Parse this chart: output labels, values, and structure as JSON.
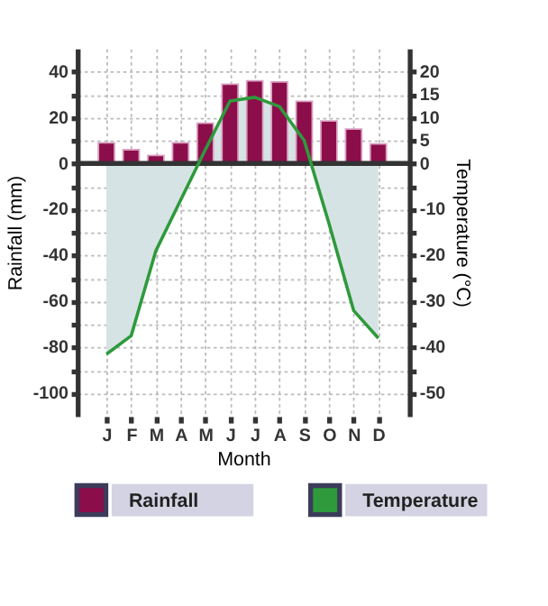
{
  "chart_data": {
    "type": "bar",
    "xlabel": "Month",
    "ylabel": "Rainfall (mm)",
    "y2label": "Temperature (°C)",
    "categories": [
      "J",
      "F",
      "M",
      "A",
      "M",
      "J",
      "J",
      "A",
      "S",
      "O",
      "N",
      "D"
    ],
    "ylim": [
      -110,
      50
    ],
    "yticks": [
      40,
      {
        "value": 30,
        "label": null
      },
      20,
      {
        "value": 10,
        "label": null
      },
      0,
      {
        "value": -10,
        "label": null
      },
      -20,
      {
        "value": -30,
        "label": null
      },
      -40,
      {
        "value": -50,
        "label": null
      },
      -60,
      {
        "value": -70,
        "label": null
      },
      -80,
      {
        "value": -90,
        "label": null
      },
      -100
    ],
    "y2lim": [
      -55,
      25
    ],
    "y2ticks": [
      20,
      15,
      10,
      5,
      0,
      {
        "value": -5,
        "label": null
      },
      -10,
      {
        "value": -15,
        "label": null
      },
      -20,
      {
        "value": -25,
        "label": null
      },
      -30,
      {
        "value": -35,
        "label": null
      },
      -40,
      {
        "value": -45,
        "label": null
      },
      -50
    ],
    "series": [
      {
        "name": "Rainfall",
        "color": "#8b0d4a",
        "values": [
          9,
          6,
          3.5,
          9,
          17.5,
          34.5,
          36,
          35.5,
          27,
          18.5,
          15,
          8.5
        ]
      },
      {
        "name": "Temperature",
        "type": "area",
        "axis": "y2",
        "color": "#2e9a3c",
        "values": [
          -41.5,
          -37.5,
          -19,
          -8,
          3,
          13.6,
          14.4,
          12.4,
          5,
          -13,
          -32,
          -38
        ]
      }
    ],
    "ref_lines": [
      {
        "axis": "y",
        "value": 0
      }
    ],
    "grid": true,
    "legend": "bottom"
  }
}
